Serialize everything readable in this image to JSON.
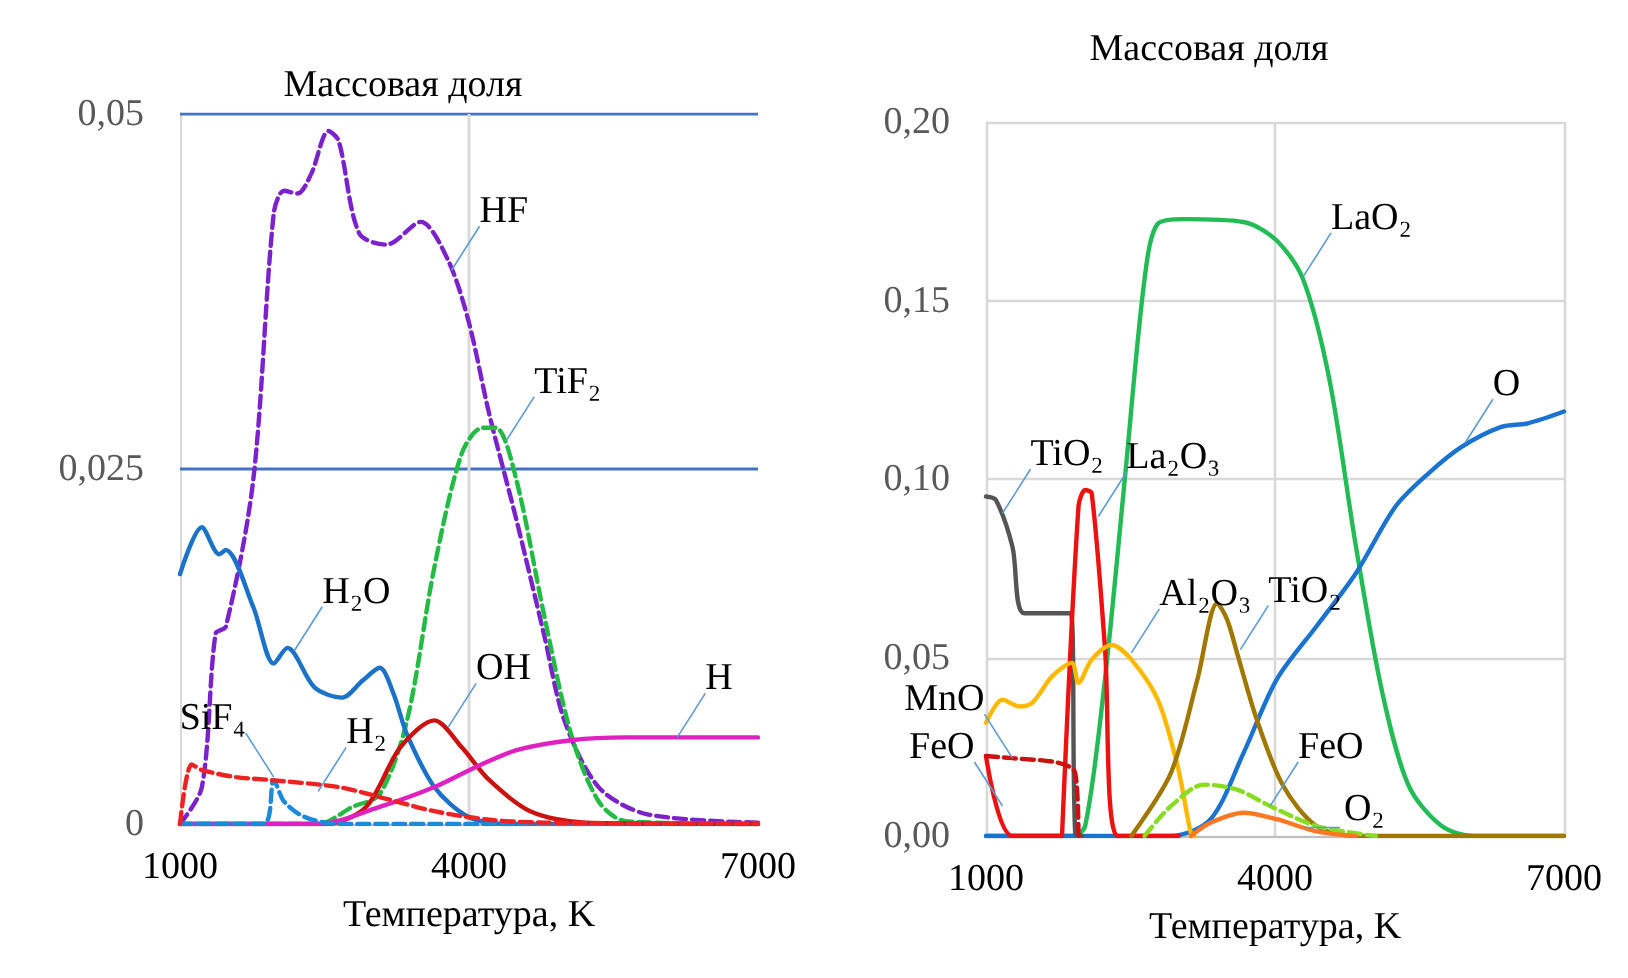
{
  "chart_data": [
    {
      "type": "line",
      "title": "Массовая доля",
      "xlabel": "Температура, K",
      "xlim": [
        1000,
        7000
      ],
      "xticks": [
        1000,
        4000,
        7000
      ],
      "ylim": [
        0,
        0.05
      ],
      "yticks": [
        {
          "value": 0,
          "label": "0"
        },
        {
          "value": 0.025,
          "label": "0,025"
        },
        {
          "value": 0.05,
          "label": "0,05"
        }
      ],
      "marker": "none",
      "ref_lines": [
        {
          "axis": "y",
          "value": 0.025,
          "color": "#4472c4"
        },
        {
          "axis": "y",
          "value": 0.05,
          "color": "#4472c4"
        },
        {
          "axis": "x",
          "value": 4000,
          "color": "#d9d9d9"
        }
      ],
      "series": [
        {
          "color": "#7b22cc",
          "line_style": "dashed",
          "x": [
            1000,
            1227,
            1369,
            1476,
            1760,
            1973,
            2079,
            2221,
            2363,
            2541,
            2647,
            2860,
            3144,
            3499,
            3783,
            3996,
            4209,
            4493,
            4777,
            4990,
            5345,
            5842,
            7000
          ],
          "values": [
            0,
            0.0026,
            0.0134,
            0.0139,
            0.0242,
            0.043,
            0.0446,
            0.0444,
            0.0458,
            0.0488,
            0.0481,
            0.0416,
            0.0408,
            0.0424,
            0.0397,
            0.0354,
            0.0289,
            0.0214,
            0.0134,
            0.0073,
            0.0026,
            0.0007,
            0.0001
          ]
        },
        {
          "color": "#22bb44",
          "line_style": "dashed",
          "x": [
            1000,
            2434,
            2789,
            3073,
            3357,
            3641,
            3925,
            4138,
            4280,
            4493,
            4777,
            5061,
            5345,
            5629,
            7000
          ],
          "values": [
            0,
            0,
            0.0012,
            0.0021,
            0.0073,
            0.0181,
            0.0261,
            0.0279,
            0.0279,
            0.0242,
            0.0148,
            0.0063,
            0.0016,
            0.0002,
            0
          ]
        },
        {
          "color": "#1a73c8",
          "line_style": "solid",
          "x": [
            1000,
            1227,
            1405,
            1476,
            1760,
            1973,
            2115,
            2399,
            2683,
            2896,
            3073,
            3215,
            3357,
            3641,
            3996,
            4422,
            7000
          ],
          "values": [
            0.0176,
            0.0209,
            0.019,
            0.0193,
            0.0153,
            0.0113,
            0.0124,
            0.0096,
            0.0089,
            0.0101,
            0.011,
            0.0092,
            0.0063,
            0.0026,
            0.0005,
            0,
            0
          ]
        },
        {
          "color": "#cc1111",
          "line_style": "solid",
          "x": [
            1000,
            2505,
            2931,
            3286,
            3641,
            3925,
            4209,
            4635,
            5203,
            7000
          ],
          "values": [
            0,
            0,
            0.0012,
            0.0054,
            0.0073,
            0.0054,
            0.0031,
            0.0009,
            0.0001,
            0
          ]
        },
        {
          "color": "#e020c0",
          "line_style": "solid",
          "x": [
            1000,
            2434,
            3073,
            3641,
            4067,
            4493,
            5061,
            5629,
            7000
          ],
          "values": [
            0,
            0,
            0.0012,
            0.0026,
            0.004,
            0.0052,
            0.0059,
            0.0061,
            0.0061
          ]
        },
        {
          "color": "#1a8ae0",
          "line_style": "dashed",
          "x": [
            1000,
            1866,
            1973,
            2079,
            2292,
            2647,
            7000
          ],
          "values": [
            0,
            0,
            0.0031,
            0.0016,
            0.0005,
            0,
            0
          ]
        },
        {
          "color": "#ee2222",
          "line_style": "dashed",
          "x": [
            1000,
            1121,
            1227,
            1582,
            1937,
            2647,
            3073,
            3641,
            4209,
            4777,
            7000
          ],
          "values": [
            0,
            0.0042,
            0.0038,
            0.0033,
            0.0031,
            0.0026,
            0.0019,
            0.0009,
            0.0003,
            0.0001,
            0
          ]
        }
      ],
      "annotations": [
        {
          "text": "HF",
          "x": 3819,
          "y": 0.039
        },
        {
          "text": "TiF₂",
          "x": 4387,
          "y": 0.027
        },
        {
          "text": "H₂O",
          "x": 2186,
          "y": 0.0122
        },
        {
          "text": "OH",
          "x": 3783,
          "y": 0.0068
        },
        {
          "text": "H",
          "x": 6162,
          "y": 0.0061
        },
        {
          "text": "SiF₄",
          "x": 1973,
          "y": 0.0033
        },
        {
          "text": "H₂",
          "x": 2434,
          "y": 0.0023
        }
      ]
    },
    {
      "type": "line",
      "title": "Массовая доля",
      "xlabel": "Температура, K",
      "xlim": [
        1000,
        7000
      ],
      "xticks": [
        1000,
        4000,
        7000
      ],
      "ylim": [
        0,
        0.2
      ],
      "yticks": [
        {
          "value": 0,
          "label": "0,00"
        },
        {
          "value": 0.05,
          "label": "0,05"
        },
        {
          "value": 0.1,
          "label": "0,10"
        },
        {
          "value": 0.15,
          "label": "0,15"
        },
        {
          "value": 0.2,
          "label": "0,20"
        }
      ],
      "grid": true,
      "marker": "none",
      "series": [
        {
          "color": "#22bb55",
          "line_style": "solid",
          "x": [
            1000,
            1891,
            2029,
            2234,
            2440,
            2646,
            2783,
            3057,
            3674,
            4017,
            4291,
            4566,
            4840,
            5114,
            5389,
            5731,
            6074,
            7000
          ],
          "values": [
            0,
            0,
            0.0028,
            0.0438,
            0.0997,
            0.156,
            0.1715,
            0.1728,
            0.172,
            0.1668,
            0.156,
            0.1277,
            0.0811,
            0.0401,
            0.014,
            0.0028,
            0,
            0
          ]
        },
        {
          "color": "#1a73d0",
          "line_style": "solid",
          "x": [
            1000,
            2920,
            3331,
            3674,
            4017,
            4429,
            4840,
            5251,
            5594,
            5937,
            6349,
            6623,
            7000
          ],
          "values": [
            0,
            0,
            0.0047,
            0.0233,
            0.0438,
            0.0587,
            0.0736,
            0.0923,
            0.1016,
            0.109,
            0.1146,
            0.1156,
            0.1189
          ]
        },
        {
          "color": "#555555",
          "line_style": "solid",
          "x": [
            1000,
            1103,
            1274,
            1398,
            1878,
            1926,
            2000
          ],
          "values": [
            0.0951,
            0.0941,
            0.0811,
            0.0624,
            0.0624,
            0.0009,
            0
          ]
        },
        {
          "color": "#ee1111",
          "line_style": "solid",
          "x": [
            1789,
            1960,
            2029,
            2097,
            2234,
            2371,
            3000
          ],
          "values": [
            0,
            0.0923,
            0.0969,
            0.096,
            0.0531,
            0,
            0
          ]
        },
        {
          "color": "#ee1111",
          "line_style": "solid",
          "x": [
            1000,
            1274,
            1789
          ],
          "values": [
            0.0224,
            0,
            0
          ]
        },
        {
          "color": "#cc1111",
          "line_style": "dashed",
          "x": [
            1000,
            1274,
            1754,
            1926,
            1960
          ],
          "values": [
            0.0224,
            0.0218,
            0.0205,
            0.0177,
            0
          ]
        },
        {
          "color": "#ffb800",
          "line_style": "solid",
          "x": [
            1000,
            1171,
            1343,
            1480,
            1686,
            1891,
            1960,
            2097,
            2303,
            2509,
            2783,
            2989,
            3126,
            3160
          ],
          "values": [
            0.0317,
            0.0382,
            0.0363,
            0.0373,
            0.0447,
            0.0485,
            0.0429,
            0.0494,
            0.0535,
            0.0494,
            0.0382,
            0.0196,
            0.0009,
            0
          ]
        },
        {
          "color": "#a07800",
          "line_style": "solid",
          "x": [
            2509,
            2920,
            3194,
            3400,
            3503,
            3606,
            3811,
            4086,
            4429,
            4840,
            7000
          ],
          "values": [
            0,
            0.0177,
            0.0438,
            0.0652,
            0.0606,
            0.0513,
            0.0326,
            0.014,
            0.0028,
            0,
            0
          ]
        },
        {
          "color": "#88dd22",
          "line_style": "dashed",
          "x": [
            2646,
            2920,
            3263,
            3606,
            3949,
            4429,
            5046
          ],
          "values": [
            0,
            0.0084,
            0.0144,
            0.013,
            0.0084,
            0.0028,
            0
          ]
        },
        {
          "color": "#ff7722",
          "line_style": "solid",
          "x": [
            3126,
            3331,
            3674,
            4017,
            4429,
            4840
          ],
          "values": [
            0,
            0.0037,
            0.0065,
            0.0047,
            0.0013,
            0
          ]
        }
      ],
      "annotations": [
        {
          "text": "TiO₂",
          "x": 1171,
          "y": 0.0904
        },
        {
          "text": "La₂O₃",
          "x": 2166,
          "y": 0.0895
        },
        {
          "text": "Al₂O₃",
          "x": 2509,
          "y": 0.0513
        },
        {
          "text": "TiO₂",
          "x": 3640,
          "y": 0.0522
        },
        {
          "text": "LaO₂",
          "x": 4291,
          "y": 0.1566
        },
        {
          "text": "O",
          "x": 5971,
          "y": 0.11
        },
        {
          "text": "MnO",
          "x": 1274,
          "y": 0.0218
        },
        {
          "text": "FeO",
          "x": 1171,
          "y": 0.0084
        },
        {
          "text": "FeO",
          "x": 3949,
          "y": 0.0084
        },
        {
          "text": "O₂",
          "x": 4300,
          "y": 0.0024
        }
      ]
    }
  ]
}
